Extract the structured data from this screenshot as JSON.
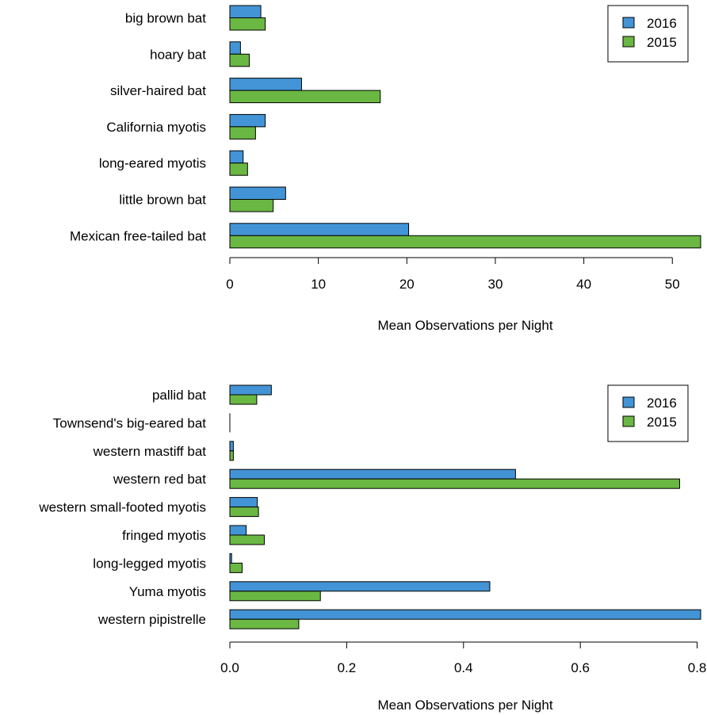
{
  "colors": {
    "y2016": "#4394d6",
    "y2015": "#6ab743",
    "stroke": "#000000"
  },
  "chart_data": [
    {
      "type": "bar",
      "orientation": "horizontal",
      "categories": [
        "big brown bat",
        "hoary bat",
        "silver-haired bat",
        "California myotis",
        "long-eared myotis",
        "little brown bat",
        "Mexican free-tailed bat"
      ],
      "series": [
        {
          "name": "2016",
          "values": [
            3.5,
            1.2,
            8.1,
            4.0,
            1.5,
            6.3,
            20.2
          ]
        },
        {
          "name": "2015",
          "values": [
            4.0,
            2.2,
            17.0,
            2.9,
            2.0,
            4.9,
            53.2
          ]
        }
      ],
      "xlabel": "Mean Observations per Night",
      "xticks": [
        "0",
        "10",
        "20",
        "30",
        "40",
        "50"
      ],
      "xlim": [
        0,
        53.2
      ],
      "legend": {
        "position": "top-right",
        "entries": [
          "2016",
          "2015"
        ]
      }
    },
    {
      "type": "bar",
      "orientation": "horizontal",
      "categories": [
        "pallid bat",
        "Townsend's big-eared bat",
        "western mastiff bat",
        "western red bat",
        "western small-footed myotis",
        "fringed myotis",
        "long-legged myotis",
        "Yuma myotis",
        "western pipistrelle"
      ],
      "series": [
        {
          "name": "2016",
          "values": [
            0.071,
            0.0,
            0.006,
            0.489,
            0.047,
            0.028,
            0.003,
            0.445,
            0.806
          ]
        },
        {
          "name": "2015",
          "values": [
            0.046,
            0.0,
            0.006,
            0.77,
            0.049,
            0.059,
            0.021,
            0.155,
            0.118
          ]
        }
      ],
      "xlabel": "Mean Observations per Night",
      "xticks": [
        "0.0",
        "0.2",
        "0.4",
        "0.6",
        "0.8"
      ],
      "xlim": [
        0,
        0.806
      ],
      "legend": {
        "position": "top-right",
        "entries": [
          "2016",
          "2015"
        ]
      }
    }
  ]
}
